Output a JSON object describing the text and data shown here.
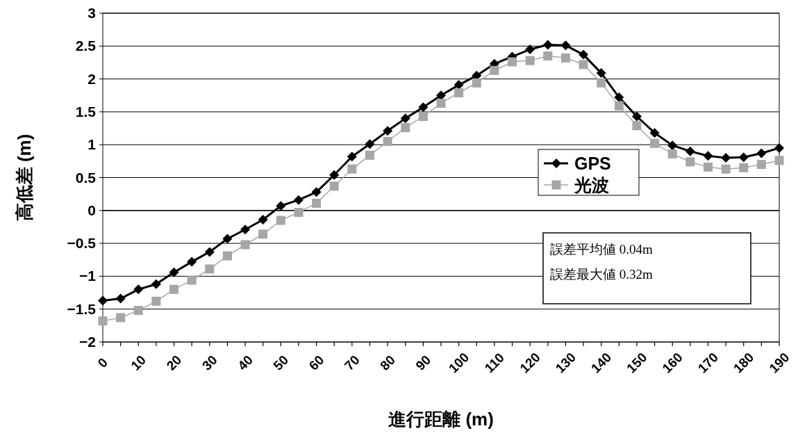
{
  "chart_data": {
    "type": "line",
    "xlabel": "進行距離 (m)",
    "ylabel": "高低差 (m)",
    "x": [
      0,
      5,
      10,
      15,
      20,
      25,
      30,
      35,
      40,
      45,
      50,
      55,
      60,
      65,
      70,
      75,
      80,
      85,
      90,
      95,
      100,
      105,
      110,
      115,
      120,
      125,
      130,
      135,
      140,
      145,
      150,
      155,
      160,
      165,
      170,
      175,
      180,
      185,
      190
    ],
    "series": [
      {
        "name": "GPS",
        "color": "#000000",
        "marker": "diamond",
        "values": [
          -1.37,
          -1.34,
          -1.2,
          -1.12,
          -0.94,
          -0.78,
          -0.63,
          -0.43,
          -0.29,
          -0.14,
          0.07,
          0.16,
          0.28,
          0.54,
          0.82,
          1.01,
          1.21,
          1.4,
          1.57,
          1.75,
          1.91,
          2.05,
          2.23,
          2.34,
          2.45,
          2.52,
          2.51,
          2.37,
          2.09,
          1.72,
          1.43,
          1.18,
          0.99,
          0.9,
          0.83,
          0.8,
          0.81,
          0.87,
          0.95
        ]
      },
      {
        "name": "光波",
        "color": "#a6a6a6",
        "marker": "square",
        "values": [
          -1.68,
          -1.63,
          -1.52,
          -1.38,
          -1.2,
          -1.06,
          -0.89,
          -0.69,
          -0.52,
          -0.36,
          -0.15,
          -0.03,
          0.11,
          0.37,
          0.63,
          0.84,
          1.05,
          1.26,
          1.43,
          1.63,
          1.79,
          1.94,
          2.13,
          2.26,
          2.28,
          2.35,
          2.32,
          2.22,
          1.94,
          1.59,
          1.29,
          1.02,
          0.86,
          0.74,
          0.66,
          0.63,
          0.65,
          0.7,
          0.76
        ]
      }
    ],
    "xlim": [
      0,
      190
    ],
    "xticks": [
      0,
      {
        "value": 5,
        "label": null
      },
      10,
      {
        "value": 15,
        "label": null
      },
      20,
      {
        "value": 25,
        "label": null
      },
      30,
      {
        "value": 35,
        "label": null
      },
      40,
      {
        "value": 45,
        "label": null
      },
      50,
      {
        "value": 55,
        "label": null
      },
      60,
      {
        "value": 65,
        "label": null
      },
      70,
      {
        "value": 75,
        "label": null
      },
      80,
      {
        "value": 85,
        "label": null
      },
      90,
      {
        "value": 95,
        "label": null
      },
      100,
      {
        "value": 105,
        "label": null
      },
      110,
      {
        "value": 115,
        "label": null
      },
      120,
      {
        "value": 125,
        "label": null
      },
      130,
      {
        "value": 135,
        "label": null
      },
      140,
      {
        "value": 145,
        "label": null
      },
      150,
      {
        "value": 155,
        "label": null
      },
      160,
      {
        "value": 165,
        "label": null
      },
      170,
      {
        "value": 175,
        "label": null
      },
      180,
      {
        "value": 185,
        "label": null
      },
      190
    ],
    "ylim": [
      -2,
      3
    ],
    "yticks": [
      -2,
      -1.5,
      -1,
      -0.5,
      0,
      0.5,
      1,
      1.5,
      2,
      2.5,
      3
    ],
    "grid": "y",
    "legend": "right",
    "annotations": [
      "誤差平均値 0.04m",
      "誤差最大値 0.32m"
    ]
  }
}
